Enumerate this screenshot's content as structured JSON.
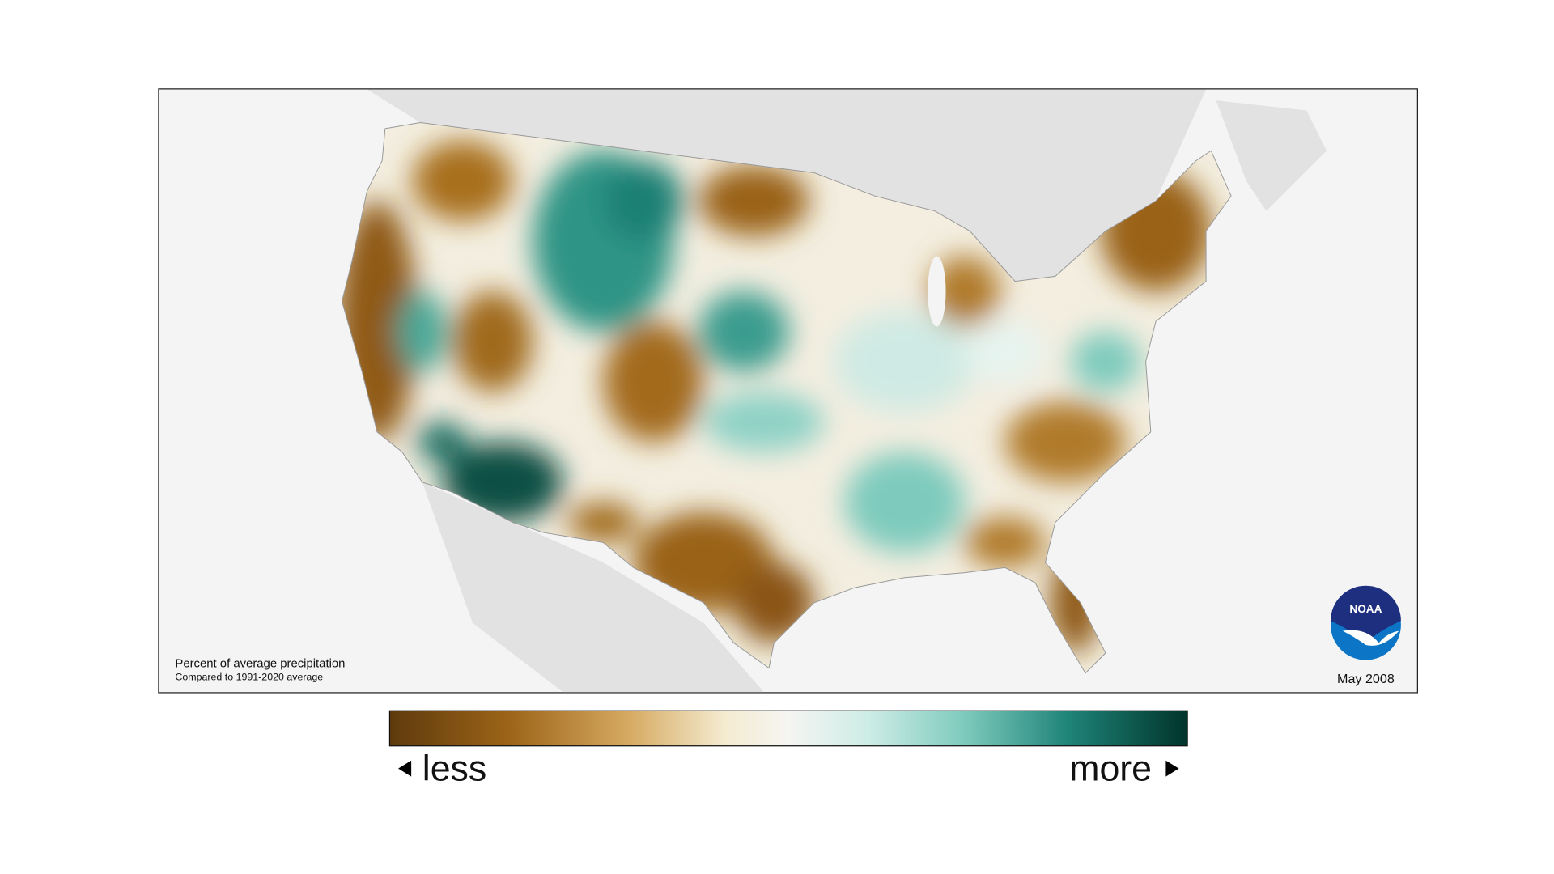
{
  "map": {
    "caption": {
      "title": "Percent of average precipitation",
      "subtitle": "Compared to 1991-2020 average"
    },
    "date": "May 2008",
    "legend": {
      "low": "less",
      "high": "more"
    },
    "logo": "NOAA"
  }
}
